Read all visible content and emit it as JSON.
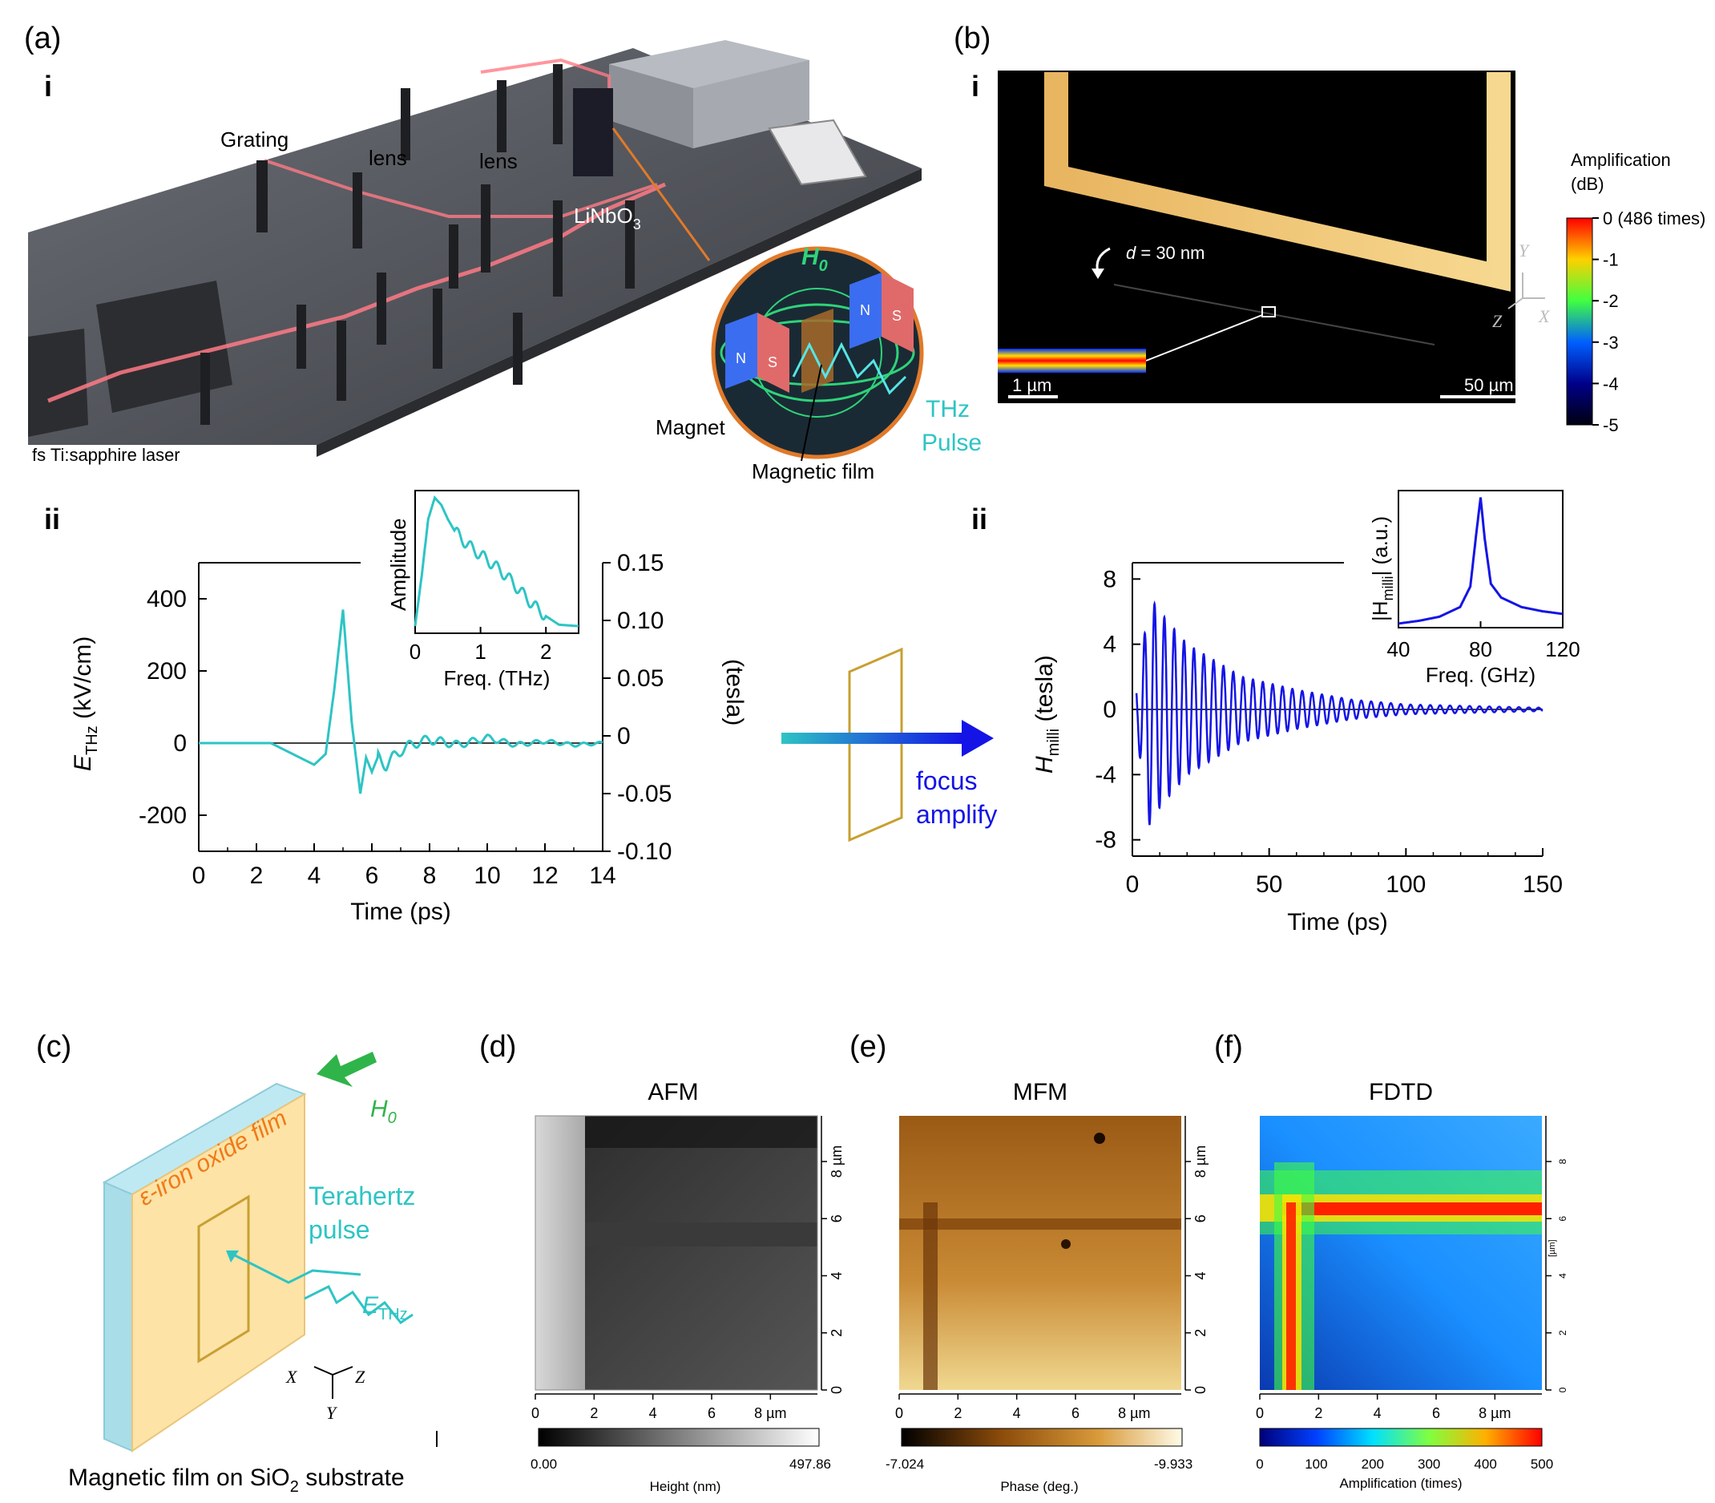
{
  "panel_a": {
    "label": "(a)",
    "sub_i": "i",
    "sub_ii": "ii",
    "setup": {
      "grating": "Grating",
      "lens1": "lens",
      "lens2": "lens",
      "crystal": "LiNbO",
      "crystal_sub": "3",
      "laser": "fs Ti:sapphire laser",
      "magnet": "Magnet",
      "film": "Magnetic film",
      "field": "H",
      "field_sub": "0",
      "pulse1": "THz",
      "pulse2": "Pulse",
      "north": "N",
      "south": "S"
    }
  },
  "panel_b": {
    "label": "(b)",
    "sub_i": "i",
    "sub_ii": "ii",
    "sim": {
      "distance_italic": "d",
      "distance": " = 30 nm",
      "scale_small": "1 µm",
      "scale_large": "50 µm",
      "axis_y": "Y",
      "axis_z": "Z",
      "axis_x": "X"
    },
    "colorbar": {
      "title1": "Amplification",
      "title2": "(dB)",
      "ticks": [
        "0 (486 times)",
        "-1",
        "-2",
        "-3",
        "-4",
        "-5"
      ]
    }
  },
  "arrow": {
    "line1": "focus",
    "line2": "amplify"
  },
  "panel_c": {
    "label": "(c)",
    "film": "ε-iron oxide film",
    "field": "H",
    "field_sub": "0",
    "pulse1": "Terahertz",
    "pulse2": "pulse",
    "e": "E",
    "e_sub": "THz",
    "ax_x": "X",
    "ax_y": "Y",
    "ax_z": "Z",
    "caption_pre": "Magnetic film on SiO",
    "caption_sub": "2",
    "caption_post": " substrate"
  },
  "panel_d": {
    "label": "(d)",
    "title": "AFM",
    "ticks": [
      "0",
      "2",
      "4",
      "6",
      "8 µm"
    ],
    "yticks": [
      "0",
      "2",
      "4",
      "6",
      "8 µm"
    ],
    "cb_min": "0.00",
    "cb_max": "497.86",
    "cb_title": "Height (nm)",
    "colors": [
      "#000000",
      "#ffffff"
    ]
  },
  "panel_e": {
    "label": "(e)",
    "title": "MFM",
    "ticks": [
      "0",
      "2",
      "4",
      "6",
      "8 µm"
    ],
    "yticks": [
      "0",
      "2",
      "4",
      "6",
      "8 µm"
    ],
    "cb_min": "-7.024",
    "cb_max": "-9.933",
    "cb_title": "Phase (deg.)",
    "colors": [
      "#000000",
      "#8a4a0a",
      "#d89a3a",
      "#fffbe8"
    ]
  },
  "panel_f": {
    "label": "(f)",
    "title": "FDTD",
    "ticks": [
      "0",
      "2",
      "4",
      "6",
      "8 µm"
    ],
    "yticks": [
      "0",
      "2",
      "4",
      "6",
      "8"
    ],
    "yunit": "[µm]",
    "cb_ticks": [
      "0",
      "100",
      "200",
      "300",
      "400",
      "500"
    ],
    "cb_title": "Amplification (times)"
  },
  "chart_data": [
    {
      "id": "E_THz_time",
      "type": "line",
      "xlabel": "Time (ps)",
      "ylabel": "E",
      "ylabel_sub": "THz",
      "ylabel_unit": " (kV/cm)",
      "y2label": "(tesla)",
      "xlim": [
        0,
        14
      ],
      "ylim": [
        -300,
        500
      ],
      "y2lim": [
        -0.1,
        0.15
      ],
      "xticks": [
        "0",
        "2",
        "4",
        "6",
        "8",
        "10",
        "12",
        "14"
      ],
      "yticks": [
        "-200",
        "0",
        "200",
        "400"
      ],
      "y2ticks": [
        "-0.10",
        "-0.05",
        "0",
        "0.05",
        "0.10",
        "0.15"
      ],
      "color": "#2ec4c4",
      "series": [
        {
          "x": [
            0,
            2.5,
            3.5,
            4.0,
            4.4,
            4.7,
            5.0,
            5.3,
            5.6,
            5.8,
            6.0,
            6.2,
            6.5,
            7.0,
            7.5,
            8.0,
            9.0,
            10.0,
            11.0,
            12.0,
            13.0,
            14.0
          ],
          "y": [
            0,
            0,
            -40,
            -60,
            -30,
            150,
            370,
            60,
            -140,
            -40,
            -80,
            -40,
            -60,
            -20,
            0,
            10,
            -5,
            15,
            -5,
            5,
            -5,
            0
          ]
        }
      ]
    },
    {
      "id": "E_THz_spectrum_inset",
      "type": "line",
      "xlabel": "Freq. (THz)",
      "ylabel": "Amplitude",
      "xlim": [
        0,
        2.5
      ],
      "xticks": [
        "0",
        "1",
        "2"
      ],
      "color": "#2ec4c4",
      "series": [
        {
          "x": [
            0,
            0.1,
            0.2,
            0.3,
            0.4,
            0.5,
            0.6,
            0.8,
            1.0,
            1.2,
            1.4,
            1.6,
            1.8,
            2.0,
            2.2,
            2.5
          ],
          "y": [
            0.05,
            0.4,
            0.8,
            0.95,
            0.9,
            0.8,
            0.72,
            0.62,
            0.55,
            0.48,
            0.4,
            0.3,
            0.2,
            0.12,
            0.06,
            0.05
          ]
        }
      ]
    },
    {
      "id": "H_milli_time",
      "type": "line",
      "xlabel": "Time (ps)",
      "ylabel": "H",
      "ylabel_sub": "milli",
      "ylabel_unit": " (tesla)",
      "xlim": [
        0,
        150
      ],
      "ylim": [
        -9,
        9
      ],
      "xticks": [
        "0",
        "50",
        "100",
        "150"
      ],
      "yticks": [
        "-8",
        "-4",
        "0",
        "4",
        "8"
      ],
      "color": "#1414e6",
      "decay_envelope": {
        "t": [
          2,
          6,
          10,
          20,
          40,
          60,
          80,
          100,
          150
        ],
        "amp": [
          2,
          7,
          6,
          4,
          2,
          1.2,
          0.6,
          0.3,
          0.1
        ]
      }
    },
    {
      "id": "H_milli_spectrum_inset",
      "type": "line",
      "xlabel": "Freq. (GHz)",
      "ylabel": "|H",
      "ylabel_sub": "milli",
      "ylabel_unit": "| (a.u.)",
      "xlim": [
        40,
        120
      ],
      "xticks": [
        "40",
        "80",
        "120"
      ],
      "color": "#1414e6",
      "series": [
        {
          "x": [
            40,
            50,
            60,
            70,
            75,
            78,
            80,
            82,
            85,
            90,
            100,
            110,
            120
          ],
          "y": [
            0.03,
            0.05,
            0.08,
            0.15,
            0.3,
            0.7,
            0.95,
            0.65,
            0.32,
            0.22,
            0.15,
            0.12,
            0.1
          ]
        }
      ]
    }
  ]
}
